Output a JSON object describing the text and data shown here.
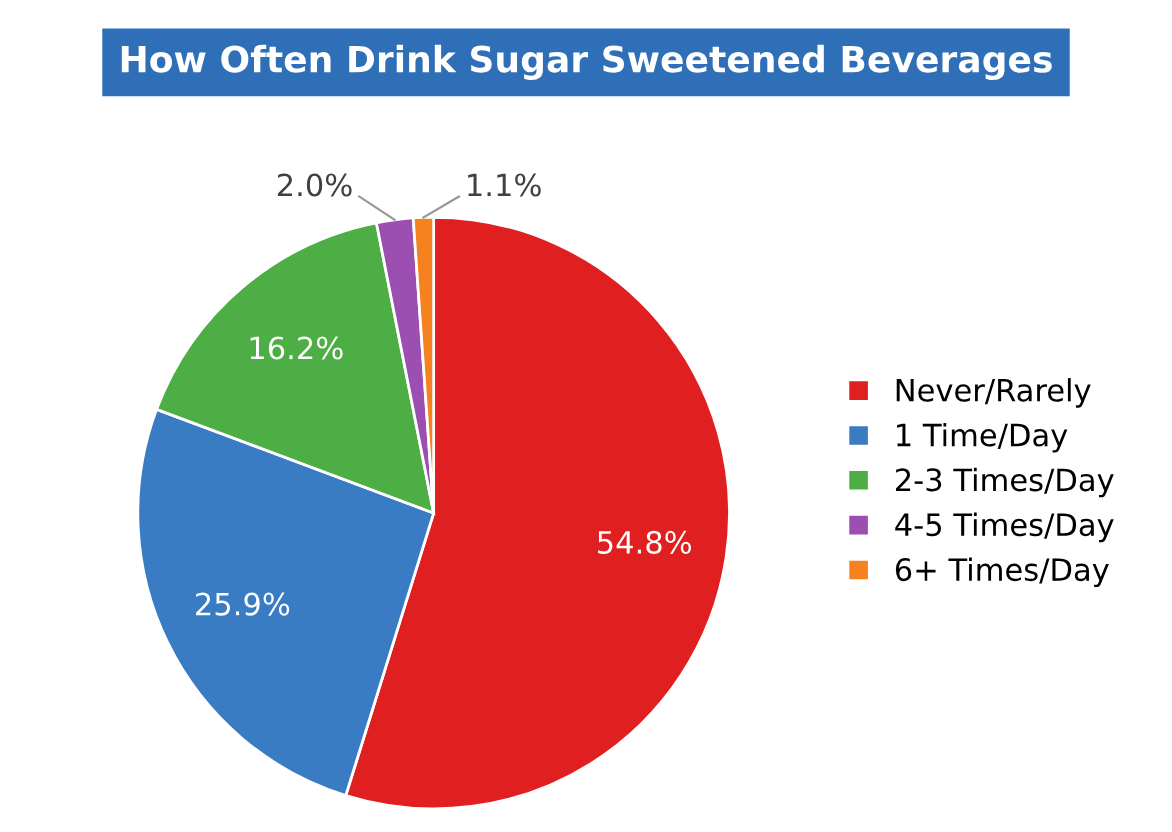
{
  "chart_data": {
    "type": "pie",
    "title": "How Often Drink Sugar Sweetened Beverages",
    "categories": [
      "Never/Rarely",
      "1 Time/Day",
      "2-3 Times/Day",
      "4-5 Times/Day",
      "6+ Times/Day"
    ],
    "values": [
      54.8,
      25.9,
      16.2,
      2.0,
      1.1
    ],
    "colors": [
      "#e02020",
      "#3a7cc4",
      "#4cae44",
      "#9b4fb0",
      "#f5821f"
    ],
    "value_labels": [
      "54.8%",
      "25.9%",
      "16.2%",
      "2.0%",
      "1.1%"
    ],
    "legend": "right"
  }
}
